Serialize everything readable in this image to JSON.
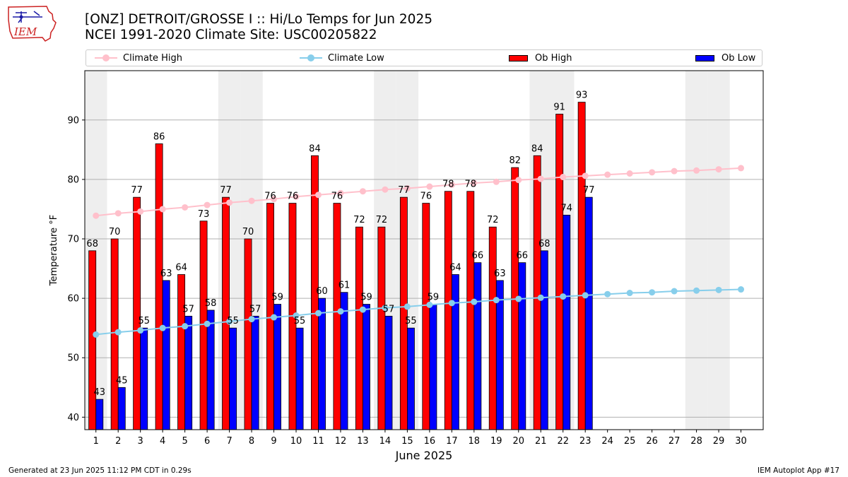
{
  "page": {
    "title_line1": "[ONZ] DETROIT/GROSSE I :: Hi/Lo Temps for Jun 2025",
    "title_line2": "NCEI 1991-2020 Climate Site: USC00205822",
    "logo_text": "IEM",
    "footer_left": "Generated at 23 Jun 2025 11:12 PM CDT in 0.29s",
    "footer_right": "IEM Autoplot App #17"
  },
  "colors": {
    "climate_high": "#ffc0cb",
    "climate_low": "#87ceeb",
    "ob_high": "#ff0000",
    "ob_low": "#0000ff",
    "weekend_band": "#eeeeee",
    "grid": "#b0b0b0",
    "logo": "#cc2222"
  },
  "chart_data": {
    "type": "bar",
    "xlabel": "June 2025",
    "ylabel": "Temperature °F",
    "ylim": [
      37.9,
      98.3
    ],
    "yticks": [
      40,
      50,
      60,
      70,
      80,
      90
    ],
    "grid": "horizontal",
    "legend_placement": "top",
    "categories": [
      "1",
      "2",
      "3",
      "4",
      "5",
      "6",
      "7",
      "8",
      "9",
      "10",
      "11",
      "12",
      "13",
      "14",
      "15",
      "16",
      "17",
      "18",
      "19",
      "20",
      "21",
      "22",
      "23",
      "24",
      "25",
      "26",
      "27",
      "28",
      "29",
      "30"
    ],
    "weekend_days": [
      1,
      7,
      8,
      14,
      15,
      21,
      22,
      28,
      29
    ],
    "series": [
      {
        "name": "Climate High",
        "kind": "line",
        "values": [
          73.9,
          74.3,
          74.6,
          75.0,
          75.3,
          75.7,
          76.1,
          76.4,
          76.7,
          77.1,
          77.4,
          77.7,
          78.0,
          78.3,
          78.5,
          78.8,
          79.1,
          79.4,
          79.6,
          79.9,
          80.1,
          80.4,
          80.6,
          80.8,
          81.0,
          81.2,
          81.4,
          81.5,
          81.7,
          81.9
        ]
      },
      {
        "name": "Climate Low",
        "kind": "line",
        "values": [
          53.9,
          54.3,
          54.6,
          55.0,
          55.3,
          55.7,
          56.1,
          56.5,
          56.8,
          57.1,
          57.5,
          57.8,
          58.1,
          58.4,
          58.6,
          58.9,
          59.2,
          59.4,
          59.7,
          59.9,
          60.1,
          60.3,
          60.5,
          60.7,
          60.9,
          61.0,
          61.2,
          61.3,
          61.4,
          61.5
        ]
      },
      {
        "name": "Ob High",
        "kind": "bar",
        "values": [
          68,
          70,
          77,
          86,
          64,
          73,
          77,
          70,
          76,
          76,
          84,
          76,
          72,
          72,
          77,
          76,
          78,
          78,
          72,
          82,
          84,
          91,
          93,
          null,
          null,
          null,
          null,
          null,
          null,
          null
        ]
      },
      {
        "name": "Ob Low",
        "kind": "bar",
        "values": [
          43,
          45,
          55,
          63,
          57,
          58,
          55,
          57,
          59,
          55,
          60,
          61,
          59,
          57,
          55,
          59,
          64,
          66,
          63,
          66,
          68,
          74,
          77,
          null,
          null,
          null,
          null,
          null,
          null,
          null
        ]
      }
    ]
  }
}
